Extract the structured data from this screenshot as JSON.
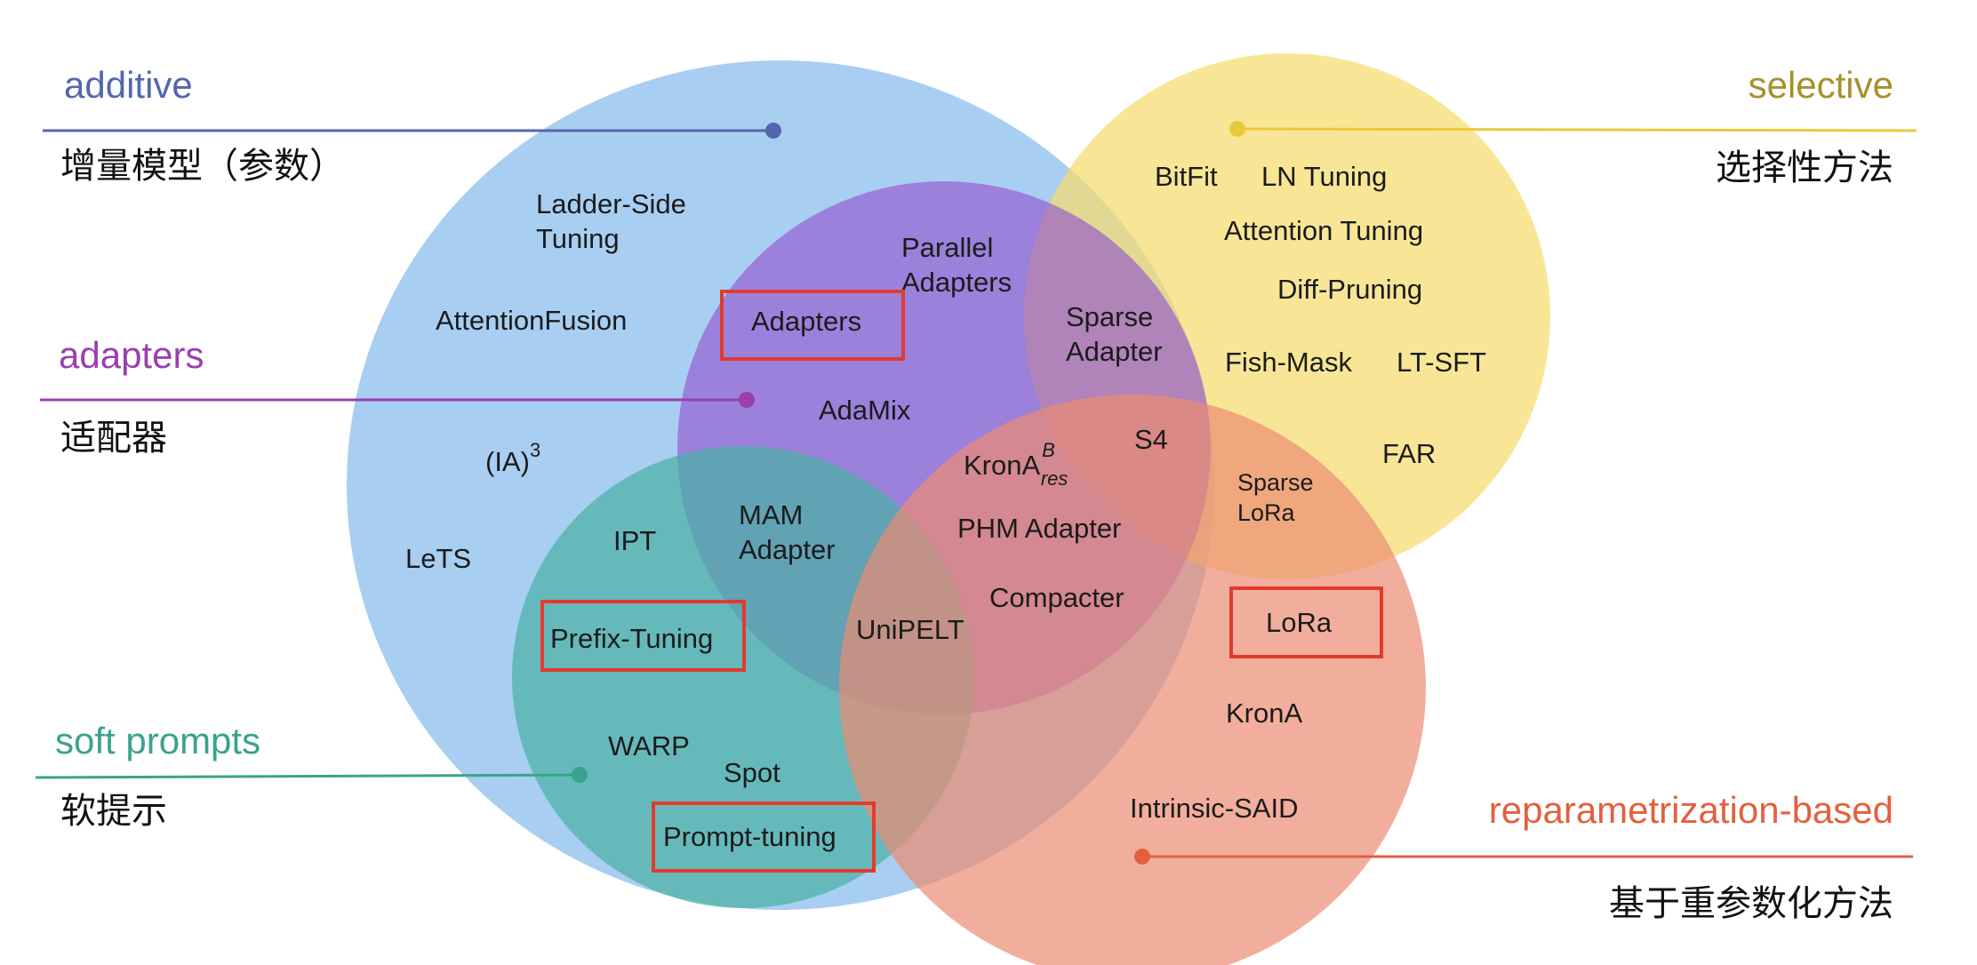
{
  "colors": {
    "additive": "#5466b0",
    "selective": "#a8902a",
    "adapters": "#9a3fae",
    "soft_prompts": "#3aa38c",
    "reparametrization": "#e2603f",
    "highlight": "#e23b2e"
  },
  "categories": {
    "additive": {
      "en": "additive",
      "zh": "增量模型（参数）"
    },
    "adapters": {
      "en": "adapters",
      "zh": "适配器"
    },
    "soft_prompts": {
      "en": "soft prompts",
      "zh": "软提示"
    },
    "selective": {
      "en": "selective",
      "zh": "选择性方法"
    },
    "reparametrization": {
      "en": "reparametrization-based",
      "zh": "基于重参数化方法"
    }
  },
  "methods": {
    "ladder_side_tuning": [
      "Ladder-Side",
      "Tuning"
    ],
    "attention_fusion": "AttentionFusion",
    "ia3_base": "(IA)",
    "ia3_sup": "3",
    "lets": "LeTS",
    "ipt": "IPT",
    "prefix_tuning": "Prefix-Tuning",
    "warp": "WARP",
    "spot": "Spot",
    "prompt_tuning": "Prompt-tuning",
    "parallel_adapters": [
      "Parallel",
      "Adapters"
    ],
    "adapters": "Adapters",
    "adamix": "AdaMix",
    "mam_adapter": [
      "MAM",
      "Adapter"
    ],
    "sparse_adapter": [
      "Sparse",
      "Adapter"
    ],
    "s4": "S4",
    "krona_res_base": "KronA",
    "krona_res_sup": "B",
    "krona_res_sub": "res",
    "phm_adapter": "PHM Adapter",
    "compacter": "Compacter",
    "unipelt": "UniPELT",
    "bitfit": "BitFit",
    "ln_tuning": "LN Tuning",
    "attention_tuning": "Attention Tuning",
    "diff_pruning": "Diff-Pruning",
    "fish_mask": "Fish-Mask",
    "lt_sft": "LT-SFT",
    "far": "FAR",
    "sparse_lora": [
      "Sparse",
      "LoRa"
    ],
    "lora": "LoRa",
    "krona": "KronA",
    "intrinsic_said": "Intrinsic-SAID"
  },
  "highlighted": [
    "Adapters",
    "Prefix-Tuning",
    "Prompt-tuning",
    "LoRa"
  ]
}
